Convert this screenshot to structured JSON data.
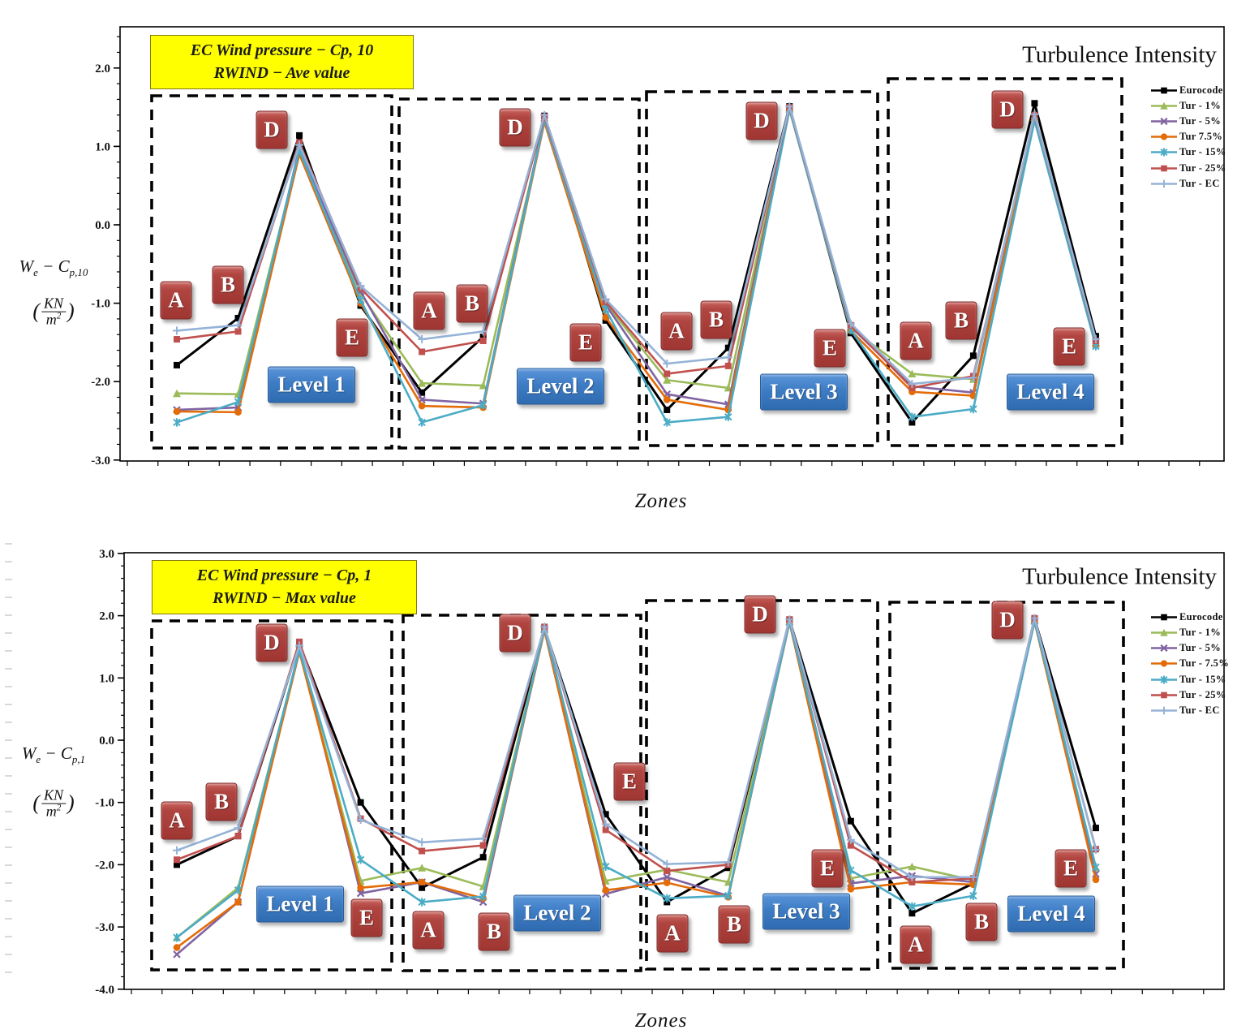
{
  "chart_data": [
    {
      "type": "line",
      "id": "wind-pressure-cp10-average",
      "title_box_lines": [
        "EC Wind pressure  − Cp, 10",
        "RWIND  − Ave value"
      ],
      "corner_title": "Turbulence Intensity",
      "x_axis_label": "Zones",
      "y_axis_label": {
        "sym": "W",
        "sym_sub": "e",
        "minus": "−",
        "coef": "C",
        "coef_sub": "p,10",
        "unit_open": "(",
        "unit_num": "KN",
        "unit_den": "m",
        "unit_den_exp": "2",
        "unit_close": ")"
      },
      "ylim": [
        -3.0,
        2.5
      ],
      "y_tick_values": [
        2.0,
        1.0,
        0.0,
        -1.0,
        -2.0,
        -3.0
      ],
      "y_tick_labels": [
        "2.0",
        "1.0",
        "0.0",
        "-1.0",
        "-2.0",
        "-3.0"
      ],
      "grid": false,
      "legend_position": "inside-right",
      "zone_sequence": [
        "A",
        "B",
        "D",
        "E"
      ],
      "level_labels": [
        "Level 1",
        "Level 2",
        "Level 3",
        "Level 4"
      ],
      "categories": [
        "A",
        "B",
        "D",
        "E",
        "A",
        "B",
        "D",
        "E",
        "A",
        "B",
        "D",
        "E",
        "A",
        "B",
        "D",
        "E"
      ],
      "series": [
        {
          "name": "Eurocode",
          "color": "#000000",
          "marker": "square",
          "values": [
            -1.79,
            -1.19,
            1.14,
            -1.03,
            -2.14,
            -1.43,
            1.39,
            -1.22,
            -2.36,
            -1.57,
            1.51,
            -1.38,
            -2.52,
            -1.67,
            1.55,
            -1.42
          ]
        },
        {
          "name": "Tur - 1%",
          "color": "#9BBB59",
          "marker": "triangle",
          "values": [
            -2.15,
            -2.16,
            0.93,
            -0.88,
            -2.02,
            -2.05,
            1.32,
            -1.0,
            -1.98,
            -2.08,
            1.48,
            -1.32,
            -1.9,
            -1.97,
            1.37,
            -1.5
          ]
        },
        {
          "name": "Tur - 5%",
          "color": "#8064A2",
          "marker": "x",
          "values": [
            -2.36,
            -2.33,
            0.98,
            -0.85,
            -2.23,
            -2.28,
            1.36,
            -1.02,
            -2.16,
            -2.29,
            1.49,
            -1.3,
            -2.06,
            -2.14,
            1.38,
            -1.52
          ]
        },
        {
          "name": "Tur 7.5%",
          "color": "#E36C09",
          "marker": "circle",
          "values": [
            -2.38,
            -2.39,
            0.9,
            -1.0,
            -2.31,
            -2.33,
            1.31,
            -1.18,
            -2.23,
            -2.36,
            1.47,
            -1.35,
            -2.13,
            -2.18,
            1.35,
            -1.53
          ]
        },
        {
          "name": "Tur - 15%",
          "color": "#4BACC6",
          "marker": "star",
          "values": [
            -2.52,
            -2.26,
            0.95,
            -0.96,
            -2.52,
            -2.3,
            1.34,
            -1.08,
            -2.52,
            -2.45,
            1.47,
            -1.34,
            -2.45,
            -2.35,
            1.33,
            -1.55
          ]
        },
        {
          "name": "Tur - 25%",
          "color": "#C0504D",
          "marker": "square",
          "values": [
            -1.46,
            -1.36,
            1.05,
            -0.81,
            -1.62,
            -1.48,
            1.38,
            -0.98,
            -1.9,
            -1.8,
            1.5,
            -1.28,
            -2.08,
            -1.93,
            1.4,
            -1.48
          ]
        },
        {
          "name": "Tur - EC",
          "color": "#95B3D7",
          "marker": "plus",
          "values": [
            -1.35,
            -1.28,
            1.02,
            -0.78,
            -1.46,
            -1.36,
            1.4,
            -0.95,
            -1.77,
            -1.69,
            1.51,
            -1.26,
            -2.03,
            -1.95,
            1.41,
            -1.46
          ]
        }
      ]
    },
    {
      "type": "line",
      "id": "wind-pressure-cp1-max",
      "title_box_lines": [
        "EC Wind pressure  − Cp, 1",
        "RWIND  − Max value"
      ],
      "corner_title": "Turbulence Intensity",
      "x_axis_label": "Zones",
      "y_axis_label": {
        "sym": "W",
        "sym_sub": "e",
        "minus": "−",
        "coef": "C",
        "coef_sub": "p,1",
        "unit_open": "(",
        "unit_num": "KN",
        "unit_den": "m",
        "unit_den_exp": "2",
        "unit_close": ")"
      },
      "ylim": [
        -4.0,
        3.0
      ],
      "y_tick_values": [
        3.0,
        2.0,
        1.0,
        0.0,
        -1.0,
        -2.0,
        -3.0,
        -4.0
      ],
      "y_tick_labels": [
        "3.0",
        "2.0",
        "1.0",
        "0.0",
        "-1.0",
        "-2.0",
        "-3.0",
        "-4.0"
      ],
      "grid": false,
      "legend_position": "inside-right",
      "zone_sequence": [
        "A",
        "B",
        "D",
        "E"
      ],
      "level_labels": [
        "Level 1",
        "Level 2",
        "Level 3",
        "Level 4"
      ],
      "categories": [
        "A",
        "B",
        "D",
        "E",
        "A",
        "B",
        "D",
        "E",
        "A",
        "B",
        "D",
        "E",
        "A",
        "B",
        "D",
        "E"
      ],
      "series": [
        {
          "name": "Eurocode",
          "color": "#000000",
          "marker": "square",
          "values": [
            -2.0,
            -1.54,
            1.55,
            -1.0,
            -2.37,
            -1.88,
            1.8,
            -1.19,
            -2.6,
            -2.05,
            1.93,
            -1.3,
            -2.78,
            -2.3,
            1.95,
            -1.41
          ]
        },
        {
          "name": "Tur - 1%",
          "color": "#9BBB59",
          "marker": "triangle",
          "values": [
            -3.17,
            -2.37,
            1.45,
            -2.26,
            -2.05,
            -2.35,
            1.78,
            -2.26,
            -2.08,
            -2.28,
            1.9,
            -2.22,
            -2.03,
            -2.25,
            1.92,
            -2.04
          ]
        },
        {
          "name": "Tur - 5%",
          "color": "#8064A2",
          "marker": "x",
          "values": [
            -3.44,
            -2.6,
            1.47,
            -2.46,
            -2.28,
            -2.6,
            1.78,
            -2.47,
            -2.2,
            -2.5,
            1.9,
            -2.3,
            -2.18,
            -2.28,
            1.92,
            -2.15
          ]
        },
        {
          "name": "Tur - 7.5%",
          "color": "#E36C09",
          "marker": "circle",
          "values": [
            -3.33,
            -2.6,
            1.42,
            -2.37,
            -2.28,
            -2.54,
            1.76,
            -2.41,
            -2.29,
            -2.52,
            1.89,
            -2.39,
            -2.28,
            -2.32,
            1.9,
            -2.24
          ]
        },
        {
          "name": "Tur - 15%",
          "color": "#4BACC6",
          "marker": "star",
          "values": [
            -3.17,
            -2.41,
            1.45,
            -1.92,
            -2.6,
            -2.51,
            1.79,
            -2.03,
            -2.54,
            -2.5,
            1.9,
            -2.09,
            -2.67,
            -2.5,
            1.91,
            -2.04
          ]
        },
        {
          "name": "Tur - 25%",
          "color": "#C0504D",
          "marker": "square",
          "values": [
            -1.92,
            -1.54,
            1.58,
            -1.26,
            -1.78,
            -1.69,
            1.82,
            -1.44,
            -2.1,
            -2.0,
            1.94,
            -1.69,
            -2.28,
            -2.22,
            1.96,
            -1.75
          ]
        },
        {
          "name": "Tur - EC",
          "color": "#95B3D7",
          "marker": "plus",
          "values": [
            -1.77,
            -1.41,
            1.52,
            -1.28,
            -1.64,
            -1.58,
            1.82,
            -1.35,
            -1.99,
            -1.96,
            1.94,
            -1.6,
            -2.2,
            -2.2,
            1.96,
            -1.76
          ]
        }
      ]
    }
  ]
}
